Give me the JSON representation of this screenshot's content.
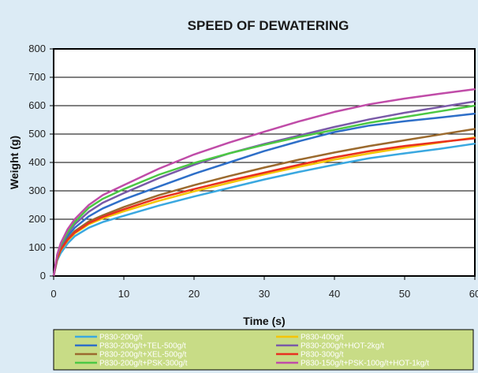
{
  "chart_data": {
    "type": "line",
    "title": "SPEED OF DEWATERING",
    "xlabel": "Time (s)",
    "ylabel": "Weight (g)",
    "xlim": [
      0,
      60
    ],
    "ylim": [
      0,
      800
    ],
    "x_ticks": [
      "0",
      "10",
      "20",
      "30",
      "40",
      "50",
      "60"
    ],
    "y_ticks": [
      "0",
      "100",
      "200",
      "300",
      "400",
      "500",
      "600",
      "700",
      "800"
    ],
    "grid": "horizontal",
    "legend_position": "bottom",
    "x": [
      0,
      0.5,
      1,
      2,
      3,
      5,
      7,
      10,
      15,
      20,
      25,
      30,
      35,
      40,
      45,
      50,
      55,
      60
    ],
    "series": [
      {
        "name": "P830-200g/t",
        "color": "#3aa8e0",
        "values": [
          0,
          55,
          80,
          115,
          140,
          170,
          190,
          212,
          248,
          280,
          310,
          340,
          367,
          392,
          415,
          432,
          448,
          466
        ]
      },
      {
        "name": "P830-400g/t",
        "color": "#f5c400",
        "values": [
          0,
          60,
          90,
          125,
          150,
          182,
          203,
          228,
          265,
          298,
          328,
          358,
          385,
          410,
          432,
          452,
          470,
          488
        ]
      },
      {
        "name": "P830-200g/t+TEL-500g/t",
        "color": "#2e6fc8",
        "values": [
          0,
          65,
          98,
          140,
          170,
          210,
          238,
          270,
          315,
          360,
          400,
          440,
          475,
          507,
          530,
          545,
          558,
          572
        ]
      },
      {
        "name": "P830-200g/t+HOT-2kg/t",
        "color": "#7a5aa8",
        "values": [
          0,
          70,
          105,
          150,
          182,
          226,
          258,
          292,
          345,
          392,
          432,
          465,
          495,
          525,
          552,
          575,
          595,
          615
        ]
      },
      {
        "name": "P830-200g/t+XEL-500g/t",
        "color": "#9b6a2e",
        "values": [
          0,
          62,
          92,
          130,
          158,
          192,
          214,
          243,
          285,
          320,
          352,
          382,
          410,
          435,
          458,
          478,
          498,
          518
        ]
      },
      {
        "name": "P830-300g/t",
        "color": "#e83020",
        "values": [
          0,
          62,
          92,
          128,
          153,
          186,
          208,
          235,
          275,
          306,
          336,
          364,
          392,
          418,
          440,
          458,
          472,
          485
        ]
      },
      {
        "name": "P830-200g/t+PSK-300g/t",
        "color": "#4cc844",
        "values": [
          0,
          72,
          108,
          155,
          190,
          240,
          272,
          306,
          357,
          398,
          432,
          462,
          490,
          515,
          540,
          560,
          580,
          600
        ]
      },
      {
        "name": "P830-150g/t+PSK-100g/t+HOT-1kg/t",
        "color": "#c04ca8",
        "values": [
          0,
          75,
          115,
          165,
          200,
          250,
          285,
          320,
          378,
          428,
          470,
          508,
          545,
          578,
          605,
          625,
          642,
          658
        ]
      }
    ]
  }
}
